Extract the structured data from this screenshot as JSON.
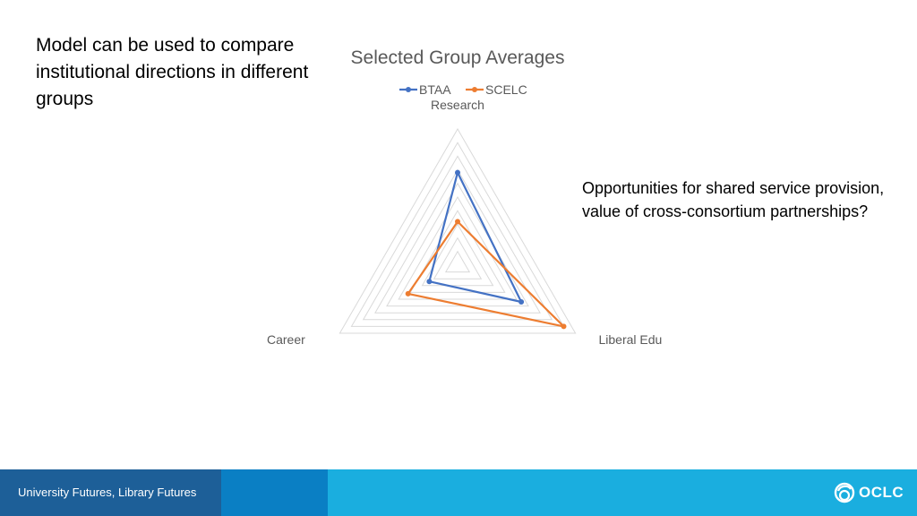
{
  "slide": {
    "heading": "Model can be used to compare institutional directions in different groups",
    "note": "Opportunities for shared service provision, value of cross-consortium partnerships?"
  },
  "footer": {
    "text": "University Futures, Library Futures",
    "logo_text": "OCLC",
    "logo_icon": "oclc-logo-icon"
  },
  "colors": {
    "btaa": "#4472c4",
    "scelc": "#ed7d31",
    "grid": "#d9d9d9"
  },
  "chart_data": {
    "type": "radar",
    "title": "Selected Group Averages",
    "axes": [
      "Research",
      "Liberal Education",
      "Career"
    ],
    "rmax": 5,
    "grid_levels": 5,
    "legend_position": "top",
    "series": [
      {
        "name": "BTAA",
        "color": "#4472c4",
        "values": [
          3.4,
          2.7,
          1.2
        ]
      },
      {
        "name": "SCELC",
        "color": "#ed7d31",
        "values": [
          1.6,
          4.5,
          2.1
        ]
      }
    ]
  }
}
